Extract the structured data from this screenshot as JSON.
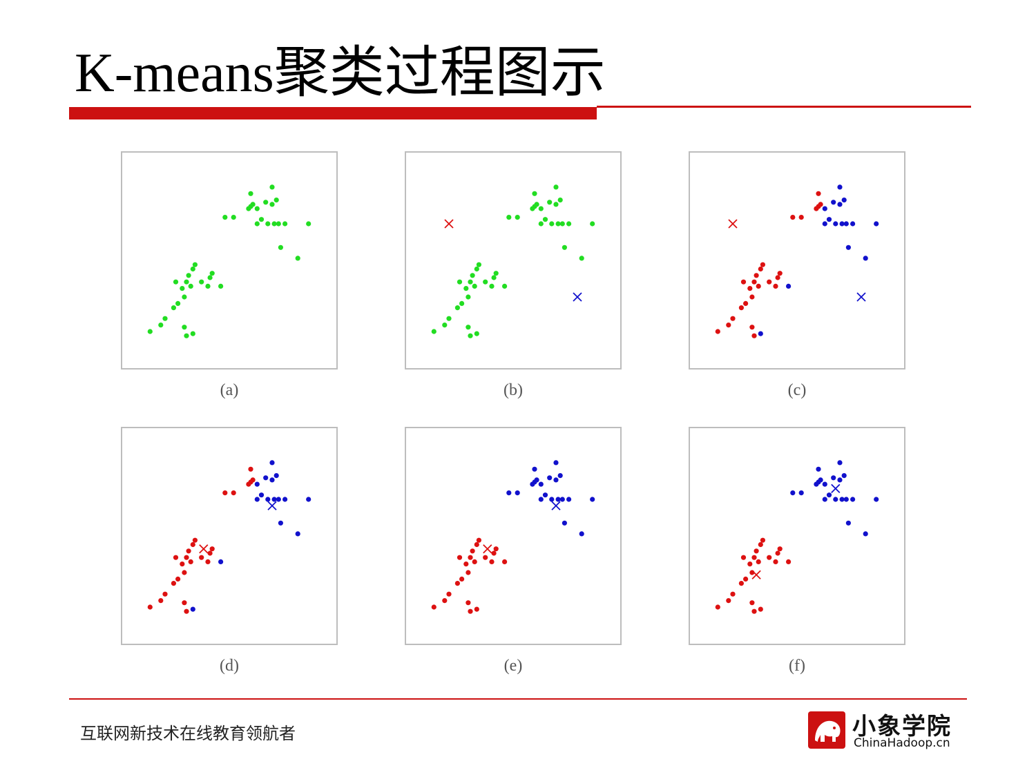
{
  "slide": {
    "title": "K-means聚类过程图示",
    "footer_text": "互联网新技术在线教育领航者",
    "logo_cn": "小象学院",
    "logo_en": "ChinaHadoop.cn",
    "logo_icon": "elephant-icon"
  },
  "colors": {
    "accent_red": "#cc1111",
    "green": "#22dd22",
    "red": "#dd1111",
    "blue": "#1111cc",
    "border": "#bdbdbd"
  },
  "chart_data": [
    {
      "type": "scatter",
      "label": "(a)",
      "xlim": [
        0,
        100
      ],
      "ylim": [
        0,
        100
      ],
      "series": [
        {
          "color": "green",
          "points": [
            [
              60,
              81
            ],
            [
              70,
              84
            ],
            [
              59,
              74
            ],
            [
              60,
              75
            ],
            [
              61,
              76
            ],
            [
              63,
              74
            ],
            [
              65,
              69
            ],
            [
              67,
              77
            ],
            [
              70,
              76
            ],
            [
              72,
              78
            ],
            [
              68,
              67
            ],
            [
              71,
              67
            ],
            [
              73,
              67
            ],
            [
              76,
              67
            ],
            [
              48,
              70
            ],
            [
              52,
              70
            ],
            [
              63,
              67
            ],
            [
              74,
              56
            ],
            [
              82,
              51
            ],
            [
              87,
              67
            ],
            [
              33,
              46
            ],
            [
              34,
              48
            ],
            [
              31,
              43
            ],
            [
              30,
              40
            ],
            [
              28,
              37
            ],
            [
              25,
              40
            ],
            [
              32,
              38
            ],
            [
              37,
              40
            ],
            [
              40,
              38
            ],
            [
              41,
              42
            ],
            [
              42,
              44
            ],
            [
              46,
              38
            ],
            [
              29,
              33
            ],
            [
              26,
              30
            ],
            [
              24,
              28
            ],
            [
              20,
              23
            ],
            [
              18,
              20
            ],
            [
              13,
              17
            ],
            [
              29,
              19
            ],
            [
              30,
              15
            ],
            [
              33,
              16
            ]
          ]
        }
      ],
      "centroids": []
    },
    {
      "type": "scatter",
      "label": "(b)",
      "xlim": [
        0,
        100
      ],
      "ylim": [
        0,
        100
      ],
      "series": [
        {
          "color": "green",
          "points": [
            [
              60,
              81
            ],
            [
              70,
              84
            ],
            [
              59,
              74
            ],
            [
              60,
              75
            ],
            [
              61,
              76
            ],
            [
              63,
              74
            ],
            [
              65,
              69
            ],
            [
              67,
              77
            ],
            [
              70,
              76
            ],
            [
              72,
              78
            ],
            [
              68,
              67
            ],
            [
              71,
              67
            ],
            [
              73,
              67
            ],
            [
              76,
              67
            ],
            [
              48,
              70
            ],
            [
              52,
              70
            ],
            [
              63,
              67
            ],
            [
              74,
              56
            ],
            [
              82,
              51
            ],
            [
              87,
              67
            ],
            [
              33,
              46
            ],
            [
              34,
              48
            ],
            [
              31,
              43
            ],
            [
              30,
              40
            ],
            [
              28,
              37
            ],
            [
              25,
              40
            ],
            [
              32,
              38
            ],
            [
              37,
              40
            ],
            [
              40,
              38
            ],
            [
              41,
              42
            ],
            [
              42,
              44
            ],
            [
              46,
              38
            ],
            [
              29,
              33
            ],
            [
              26,
              30
            ],
            [
              24,
              28
            ],
            [
              20,
              23
            ],
            [
              18,
              20
            ],
            [
              13,
              17
            ],
            [
              29,
              19
            ],
            [
              30,
              15
            ],
            [
              33,
              16
            ]
          ]
        }
      ],
      "centroids": [
        {
          "color": "red",
          "point": [
            20,
            67
          ]
        },
        {
          "color": "blue",
          "point": [
            80,
            33
          ]
        }
      ]
    },
    {
      "type": "scatter",
      "label": "(c)",
      "xlim": [
        0,
        100
      ],
      "ylim": [
        0,
        100
      ],
      "series": [
        {
          "color": "red",
          "points": [
            [
              60,
              81
            ],
            [
              59,
              74
            ],
            [
              60,
              75
            ],
            [
              61,
              76
            ],
            [
              48,
              70
            ],
            [
              52,
              70
            ],
            [
              33,
              46
            ],
            [
              34,
              48
            ],
            [
              31,
              43
            ],
            [
              30,
              40
            ],
            [
              28,
              37
            ],
            [
              25,
              40
            ],
            [
              32,
              38
            ],
            [
              37,
              40
            ],
            [
              40,
              38
            ],
            [
              41,
              42
            ],
            [
              42,
              44
            ],
            [
              29,
              33
            ],
            [
              26,
              30
            ],
            [
              24,
              28
            ],
            [
              20,
              23
            ],
            [
              18,
              20
            ],
            [
              13,
              17
            ],
            [
              29,
              19
            ],
            [
              30,
              15
            ]
          ]
        },
        {
          "color": "blue",
          "points": [
            [
              70,
              84
            ],
            [
              63,
              74
            ],
            [
              65,
              69
            ],
            [
              67,
              77
            ],
            [
              70,
              76
            ],
            [
              72,
              78
            ],
            [
              68,
              67
            ],
            [
              71,
              67
            ],
            [
              73,
              67
            ],
            [
              76,
              67
            ],
            [
              63,
              67
            ],
            [
              74,
              56
            ],
            [
              82,
              51
            ],
            [
              87,
              67
            ],
            [
              46,
              38
            ],
            [
              33,
              16
            ]
          ]
        }
      ],
      "centroids": [
        {
          "color": "red",
          "point": [
            20,
            67
          ]
        },
        {
          "color": "blue",
          "point": [
            80,
            33
          ]
        }
      ]
    },
    {
      "type": "scatter",
      "label": "(d)",
      "xlim": [
        0,
        100
      ],
      "ylim": [
        0,
        100
      ],
      "series": [
        {
          "color": "red",
          "points": [
            [
              60,
              81
            ],
            [
              59,
              74
            ],
            [
              60,
              75
            ],
            [
              61,
              76
            ],
            [
              48,
              70
            ],
            [
              52,
              70
            ],
            [
              33,
              46
            ],
            [
              34,
              48
            ],
            [
              31,
              43
            ],
            [
              30,
              40
            ],
            [
              28,
              37
            ],
            [
              25,
              40
            ],
            [
              32,
              38
            ],
            [
              37,
              40
            ],
            [
              40,
              38
            ],
            [
              41,
              42
            ],
            [
              42,
              44
            ],
            [
              29,
              33
            ],
            [
              26,
              30
            ],
            [
              24,
              28
            ],
            [
              20,
              23
            ],
            [
              18,
              20
            ],
            [
              13,
              17
            ],
            [
              29,
              19
            ],
            [
              30,
              15
            ]
          ]
        },
        {
          "color": "blue",
          "points": [
            [
              70,
              84
            ],
            [
              63,
              74
            ],
            [
              65,
              69
            ],
            [
              67,
              77
            ],
            [
              70,
              76
            ],
            [
              72,
              78
            ],
            [
              68,
              67
            ],
            [
              71,
              67
            ],
            [
              73,
              67
            ],
            [
              76,
              67
            ],
            [
              63,
              67
            ],
            [
              74,
              56
            ],
            [
              82,
              51
            ],
            [
              87,
              67
            ],
            [
              46,
              38
            ],
            [
              33,
              16
            ]
          ]
        }
      ],
      "centroids": [
        {
          "color": "red",
          "point": [
            38,
            44
          ]
        },
        {
          "color": "blue",
          "point": [
            70,
            64
          ]
        }
      ]
    },
    {
      "type": "scatter",
      "label": "(e)",
      "xlim": [
        0,
        100
      ],
      "ylim": [
        0,
        100
      ],
      "series": [
        {
          "color": "red",
          "points": [
            [
              33,
              46
            ],
            [
              34,
              48
            ],
            [
              31,
              43
            ],
            [
              30,
              40
            ],
            [
              28,
              37
            ],
            [
              25,
              40
            ],
            [
              32,
              38
            ],
            [
              37,
              40
            ],
            [
              40,
              38
            ],
            [
              41,
              42
            ],
            [
              42,
              44
            ],
            [
              46,
              38
            ],
            [
              29,
              33
            ],
            [
              26,
              30
            ],
            [
              24,
              28
            ],
            [
              20,
              23
            ],
            [
              18,
              20
            ],
            [
              13,
              17
            ],
            [
              29,
              19
            ],
            [
              30,
              15
            ],
            [
              33,
              16
            ]
          ]
        },
        {
          "color": "blue",
          "points": [
            [
              60,
              81
            ],
            [
              70,
              84
            ],
            [
              59,
              74
            ],
            [
              60,
              75
            ],
            [
              61,
              76
            ],
            [
              63,
              74
            ],
            [
              65,
              69
            ],
            [
              67,
              77
            ],
            [
              70,
              76
            ],
            [
              72,
              78
            ],
            [
              68,
              67
            ],
            [
              71,
              67
            ],
            [
              73,
              67
            ],
            [
              76,
              67
            ],
            [
              48,
              70
            ],
            [
              52,
              70
            ],
            [
              63,
              67
            ],
            [
              74,
              56
            ],
            [
              82,
              51
            ],
            [
              87,
              67
            ]
          ]
        }
      ],
      "centroids": [
        {
          "color": "red",
          "point": [
            38,
            44
          ]
        },
        {
          "color": "blue",
          "point": [
            70,
            64
          ]
        }
      ]
    },
    {
      "type": "scatter",
      "label": "(f)",
      "xlim": [
        0,
        100
      ],
      "ylim": [
        0,
        100
      ],
      "series": [
        {
          "color": "red",
          "points": [
            [
              33,
              46
            ],
            [
              34,
              48
            ],
            [
              31,
              43
            ],
            [
              30,
              40
            ],
            [
              28,
              37
            ],
            [
              25,
              40
            ],
            [
              32,
              38
            ],
            [
              37,
              40
            ],
            [
              40,
              38
            ],
            [
              41,
              42
            ],
            [
              42,
              44
            ],
            [
              46,
              38
            ],
            [
              29,
              33
            ],
            [
              26,
              30
            ],
            [
              24,
              28
            ],
            [
              20,
              23
            ],
            [
              18,
              20
            ],
            [
              13,
              17
            ],
            [
              29,
              19
            ],
            [
              30,
              15
            ],
            [
              33,
              16
            ]
          ]
        },
        {
          "color": "blue",
          "points": [
            [
              60,
              81
            ],
            [
              70,
              84
            ],
            [
              59,
              74
            ],
            [
              60,
              75
            ],
            [
              61,
              76
            ],
            [
              63,
              74
            ],
            [
              65,
              69
            ],
            [
              67,
              77
            ],
            [
              70,
              76
            ],
            [
              72,
              78
            ],
            [
              68,
              67
            ],
            [
              71,
              67
            ],
            [
              73,
              67
            ],
            [
              76,
              67
            ],
            [
              48,
              70
            ],
            [
              52,
              70
            ],
            [
              63,
              67
            ],
            [
              74,
              56
            ],
            [
              82,
              51
            ],
            [
              87,
              67
            ]
          ]
        }
      ],
      "centroids": [
        {
          "color": "red",
          "point": [
            31,
            32
          ]
        },
        {
          "color": "blue",
          "point": [
            68,
            72
          ]
        }
      ]
    }
  ]
}
